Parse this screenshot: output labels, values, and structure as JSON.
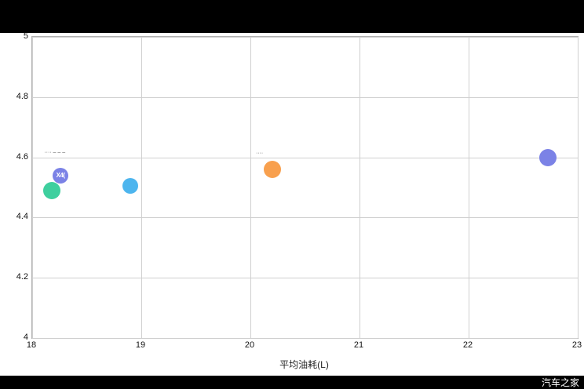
{
  "chart_data": {
    "type": "scatter",
    "title": "",
    "xlabel": "平均油耗(L)",
    "ylabel": "",
    "xlim": [
      18,
      23
    ],
    "ylim": [
      4,
      5
    ],
    "grid": true,
    "legend_position": "none",
    "x_ticks": [
      {
        "value": 18,
        "label": "18"
      },
      {
        "value": 19,
        "label": "19"
      },
      {
        "value": 20,
        "label": "20"
      },
      {
        "value": 21,
        "label": "21"
      },
      {
        "value": 22,
        "label": "22"
      },
      {
        "value": 23,
        "label": "23"
      }
    ],
    "y_ticks": [
      {
        "value": 5,
        "label": "5"
      },
      {
        "value": 4.8,
        "label": "4.8"
      },
      {
        "value": 4.6,
        "label": "4.6"
      },
      {
        "value": 4.4,
        "label": "4.4"
      },
      {
        "value": 4.2,
        "label": "4.2"
      },
      {
        "value": 4,
        "label": "4"
      }
    ],
    "points": [
      {
        "x": 18.18,
        "y": 4.49,
        "r": 11,
        "color": "#3ecf9e",
        "label": ""
      },
      {
        "x": 18.26,
        "y": 4.54,
        "r": 10,
        "color": "#7b82e6",
        "label": "X4("
      },
      {
        "x": 18.9,
        "y": 4.505,
        "r": 10,
        "color": "#4db5ee",
        "label": ""
      },
      {
        "x": 20.2,
        "y": 4.56,
        "r": 11,
        "color": "#f8a04e",
        "label": ""
      },
      {
        "x": 22.73,
        "y": 4.6,
        "r": 11,
        "color": "#7b82e6",
        "label": ""
      }
    ],
    "annotations": [
      {
        "text": "···· – – –",
        "x": 18.11,
        "y": 4.617
      },
      {
        "text": "····",
        "x": 20.05,
        "y": 4.615
      }
    ]
  },
  "watermark": {
    "brand": "汽车之家"
  }
}
